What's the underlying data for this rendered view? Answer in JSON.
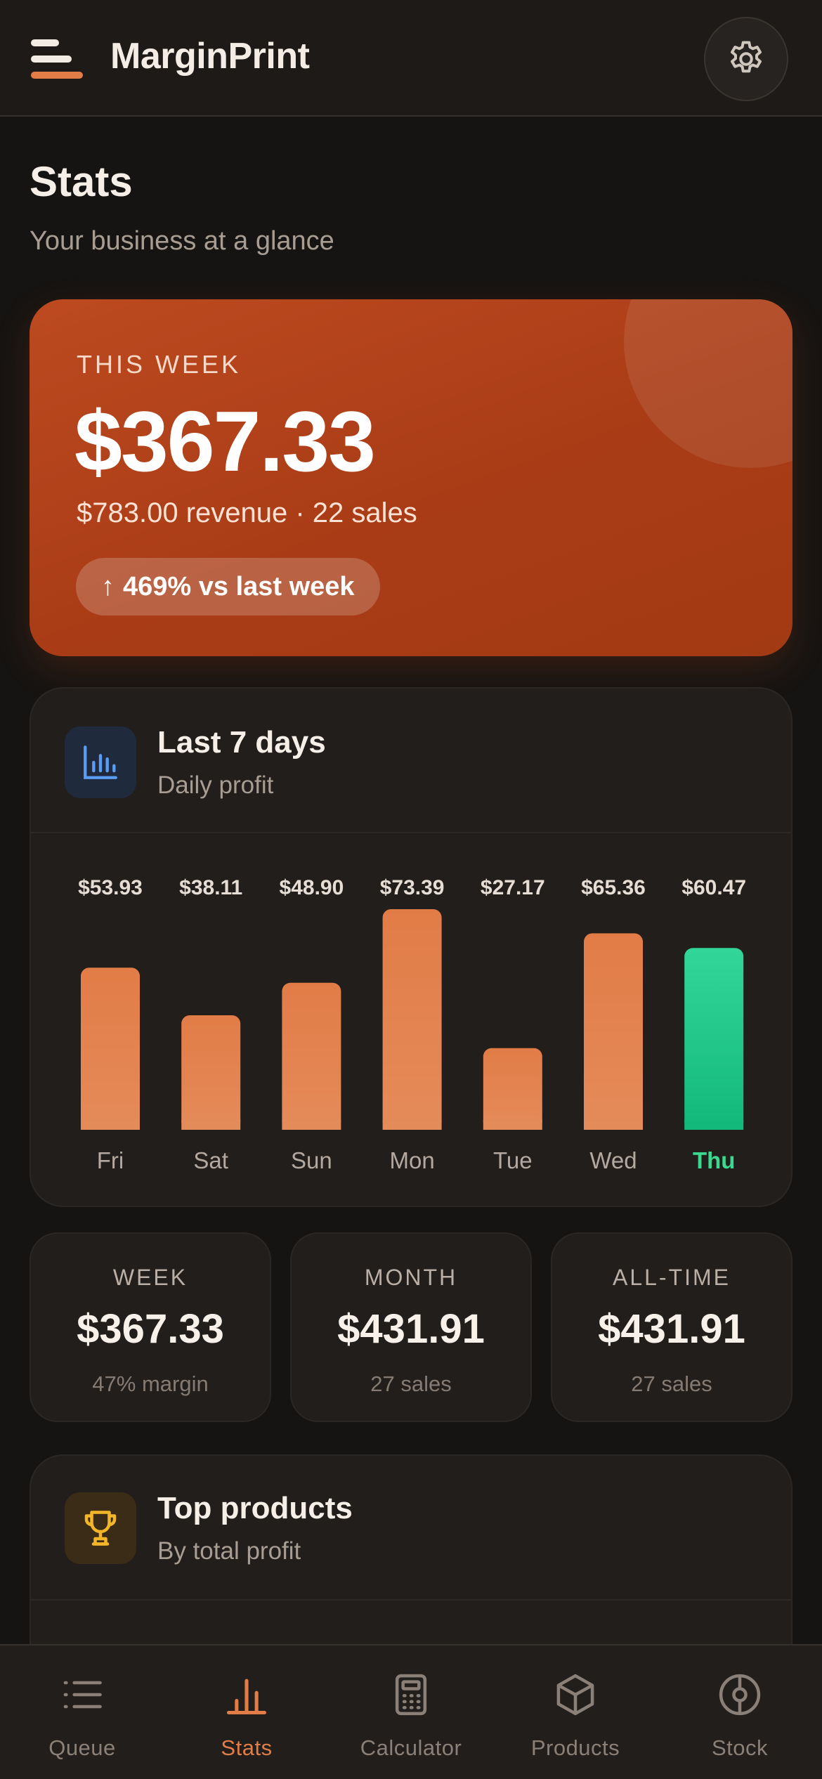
{
  "header": {
    "app_title": "MarginPrint",
    "menu_icon": "menu-icon",
    "settings_icon": "gear-icon"
  },
  "page": {
    "title": "Stats",
    "subtitle": "Your business at a glance"
  },
  "hero": {
    "label": "THIS WEEK",
    "amount": "$367.33",
    "detail": "$783.00 revenue · 22 sales",
    "badge_arrow": "↑",
    "badge_text": "469% vs last week"
  },
  "chart_card": {
    "title": "Last 7 days",
    "subtitle": "Daily profit",
    "icon": "bar-chart-icon"
  },
  "chart_data": {
    "type": "bar",
    "categories": [
      "Fri",
      "Sat",
      "Sun",
      "Mon",
      "Tue",
      "Wed",
      "Thu"
    ],
    "values": [
      53.93,
      38.11,
      48.9,
      73.39,
      27.17,
      65.36,
      60.47
    ],
    "value_labels": [
      "$53.93",
      "$38.11",
      "$48.90",
      "$73.39",
      "$27.17",
      "$65.36",
      "$60.47"
    ],
    "highlight_index": 6,
    "ylim": [
      0,
      73.39
    ],
    "grid": false,
    "colors": {
      "bar": "#e27c47",
      "bar_light": "#e48a58",
      "highlight": "#2fd396",
      "highlight_dark": "#14b87c",
      "highlight_label": "#3ad98f"
    }
  },
  "tiles": [
    {
      "label": "WEEK",
      "value": "$367.33",
      "sub": "47% margin"
    },
    {
      "label": "MONTH",
      "value": "$431.91",
      "sub": "27 sales"
    },
    {
      "label": "ALL-TIME",
      "value": "$431.91",
      "sub": "27 sales"
    }
  ],
  "products_card": {
    "title": "Top products",
    "subtitle": "By total profit",
    "icon": "trophy-icon"
  },
  "nav": {
    "items": [
      {
        "label": "Queue",
        "icon": "list-icon",
        "active": false
      },
      {
        "label": "Stats",
        "icon": "bar-chart-icon",
        "active": true
      },
      {
        "label": "Calculator",
        "icon": "calculator-icon",
        "active": false
      },
      {
        "label": "Products",
        "icon": "box-icon",
        "active": false
      },
      {
        "label": "Stock",
        "icon": "target-icon",
        "active": false
      }
    ]
  },
  "colors": {
    "accent": "#e27d47",
    "hero_bg": "#b5431b",
    "background": "#161412",
    "card": "#211e1b"
  }
}
